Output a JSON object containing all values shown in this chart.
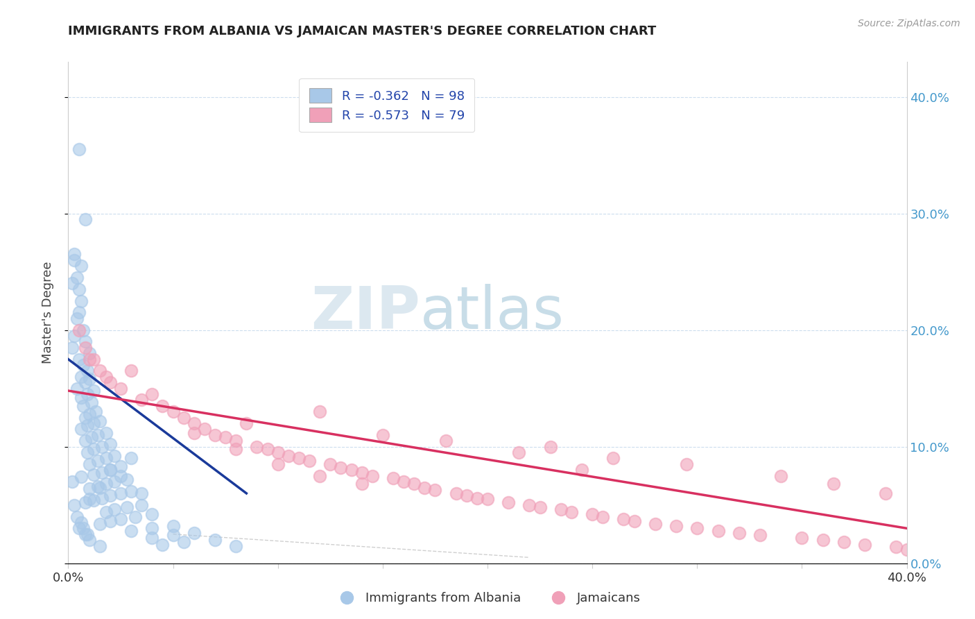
{
  "title": "IMMIGRANTS FROM ALBANIA VS JAMAICAN MASTER'S DEGREE CORRELATION CHART",
  "source": "Source: ZipAtlas.com",
  "ylabel": "Master's Degree",
  "xlim": [
    0.0,
    0.4
  ],
  "ylim": [
    0.0,
    0.43
  ],
  "legend_r1": "R = -0.362   N = 98",
  "legend_r2": "R = -0.573   N = 79",
  "color_albania": "#a8c8e8",
  "color_jamaica": "#f0a0b8",
  "line_color_albania": "#1a3a9a",
  "line_color_jamaica": "#d83060",
  "watermark_zip": "ZIP",
  "watermark_atlas": "atlas",
  "albania_scatter": [
    [
      0.005,
      0.355
    ],
    [
      0.008,
      0.295
    ],
    [
      0.003,
      0.265
    ],
    [
      0.006,
      0.255
    ],
    [
      0.004,
      0.245
    ],
    [
      0.005,
      0.235
    ],
    [
      0.003,
      0.26
    ],
    [
      0.002,
      0.24
    ],
    [
      0.006,
      0.225
    ],
    [
      0.005,
      0.215
    ],
    [
      0.004,
      0.21
    ],
    [
      0.007,
      0.2
    ],
    [
      0.003,
      0.195
    ],
    [
      0.008,
      0.19
    ],
    [
      0.002,
      0.185
    ],
    [
      0.01,
      0.18
    ],
    [
      0.005,
      0.175
    ],
    [
      0.007,
      0.17
    ],
    [
      0.009,
      0.165
    ],
    [
      0.006,
      0.16
    ],
    [
      0.01,
      0.158
    ],
    [
      0.008,
      0.155
    ],
    [
      0.004,
      0.15
    ],
    [
      0.012,
      0.148
    ],
    [
      0.009,
      0.145
    ],
    [
      0.006,
      0.142
    ],
    [
      0.011,
      0.138
    ],
    [
      0.007,
      0.135
    ],
    [
      0.013,
      0.13
    ],
    [
      0.01,
      0.128
    ],
    [
      0.008,
      0.125
    ],
    [
      0.015,
      0.122
    ],
    [
      0.012,
      0.12
    ],
    [
      0.009,
      0.118
    ],
    [
      0.006,
      0.115
    ],
    [
      0.018,
      0.112
    ],
    [
      0.014,
      0.11
    ],
    [
      0.011,
      0.108
    ],
    [
      0.008,
      0.105
    ],
    [
      0.02,
      0.102
    ],
    [
      0.016,
      0.1
    ],
    [
      0.012,
      0.098
    ],
    [
      0.009,
      0.095
    ],
    [
      0.022,
      0.092
    ],
    [
      0.018,
      0.09
    ],
    [
      0.014,
      0.088
    ],
    [
      0.01,
      0.085
    ],
    [
      0.025,
      0.083
    ],
    [
      0.02,
      0.08
    ],
    [
      0.016,
      0.078
    ],
    [
      0.012,
      0.076
    ],
    [
      0.006,
      0.074
    ],
    [
      0.028,
      0.072
    ],
    [
      0.022,
      0.07
    ],
    [
      0.018,
      0.068
    ],
    [
      0.014,
      0.066
    ],
    [
      0.01,
      0.064
    ],
    [
      0.03,
      0.062
    ],
    [
      0.025,
      0.06
    ],
    [
      0.02,
      0.058
    ],
    [
      0.016,
      0.056
    ],
    [
      0.012,
      0.054
    ],
    [
      0.008,
      0.052
    ],
    [
      0.035,
      0.05
    ],
    [
      0.028,
      0.048
    ],
    [
      0.022,
      0.046
    ],
    [
      0.018,
      0.044
    ],
    [
      0.04,
      0.042
    ],
    [
      0.032,
      0.04
    ],
    [
      0.025,
      0.038
    ],
    [
      0.02,
      0.036
    ],
    [
      0.015,
      0.034
    ],
    [
      0.05,
      0.032
    ],
    [
      0.04,
      0.03
    ],
    [
      0.03,
      0.028
    ],
    [
      0.06,
      0.026
    ],
    [
      0.05,
      0.024
    ],
    [
      0.04,
      0.022
    ],
    [
      0.07,
      0.02
    ],
    [
      0.055,
      0.018
    ],
    [
      0.045,
      0.016
    ],
    [
      0.08,
      0.015
    ],
    [
      0.01,
      0.055
    ],
    [
      0.015,
      0.065
    ],
    [
      0.02,
      0.08
    ],
    [
      0.025,
      0.075
    ],
    [
      0.03,
      0.09
    ],
    [
      0.035,
      0.06
    ],
    [
      0.005,
      0.03
    ],
    [
      0.008,
      0.025
    ],
    [
      0.01,
      0.02
    ],
    [
      0.015,
      0.015
    ],
    [
      0.002,
      0.07
    ],
    [
      0.003,
      0.05
    ],
    [
      0.004,
      0.04
    ],
    [
      0.006,
      0.035
    ],
    [
      0.007,
      0.03
    ],
    [
      0.009,
      0.025
    ]
  ],
  "jamaica_scatter": [
    [
      0.005,
      0.2
    ],
    [
      0.008,
      0.185
    ],
    [
      0.01,
      0.175
    ],
    [
      0.015,
      0.165
    ],
    [
      0.012,
      0.175
    ],
    [
      0.018,
      0.16
    ],
    [
      0.02,
      0.155
    ],
    [
      0.025,
      0.15
    ],
    [
      0.03,
      0.165
    ],
    [
      0.035,
      0.14
    ],
    [
      0.04,
      0.145
    ],
    [
      0.045,
      0.135
    ],
    [
      0.05,
      0.13
    ],
    [
      0.055,
      0.125
    ],
    [
      0.06,
      0.12
    ],
    [
      0.065,
      0.115
    ],
    [
      0.07,
      0.11
    ],
    [
      0.075,
      0.108
    ],
    [
      0.08,
      0.105
    ],
    [
      0.085,
      0.12
    ],
    [
      0.09,
      0.1
    ],
    [
      0.095,
      0.098
    ],
    [
      0.1,
      0.095
    ],
    [
      0.105,
      0.092
    ],
    [
      0.11,
      0.09
    ],
    [
      0.115,
      0.088
    ],
    [
      0.12,
      0.13
    ],
    [
      0.125,
      0.085
    ],
    [
      0.13,
      0.082
    ],
    [
      0.135,
      0.08
    ],
    [
      0.14,
      0.078
    ],
    [
      0.145,
      0.075
    ],
    [
      0.15,
      0.11
    ],
    [
      0.155,
      0.073
    ],
    [
      0.16,
      0.07
    ],
    [
      0.165,
      0.068
    ],
    [
      0.17,
      0.065
    ],
    [
      0.175,
      0.063
    ],
    [
      0.18,
      0.105
    ],
    [
      0.185,
      0.06
    ],
    [
      0.19,
      0.058
    ],
    [
      0.195,
      0.056
    ],
    [
      0.2,
      0.055
    ],
    [
      0.21,
      0.052
    ],
    [
      0.215,
      0.095
    ],
    [
      0.22,
      0.05
    ],
    [
      0.225,
      0.048
    ],
    [
      0.23,
      0.1
    ],
    [
      0.235,
      0.046
    ],
    [
      0.24,
      0.044
    ],
    [
      0.245,
      0.08
    ],
    [
      0.25,
      0.042
    ],
    [
      0.255,
      0.04
    ],
    [
      0.26,
      0.09
    ],
    [
      0.265,
      0.038
    ],
    [
      0.27,
      0.036
    ],
    [
      0.28,
      0.034
    ],
    [
      0.29,
      0.032
    ],
    [
      0.295,
      0.085
    ],
    [
      0.3,
      0.03
    ],
    [
      0.31,
      0.028
    ],
    [
      0.32,
      0.026
    ],
    [
      0.33,
      0.024
    ],
    [
      0.34,
      0.075
    ],
    [
      0.35,
      0.022
    ],
    [
      0.36,
      0.02
    ],
    [
      0.365,
      0.068
    ],
    [
      0.37,
      0.018
    ],
    [
      0.38,
      0.016
    ],
    [
      0.39,
      0.06
    ],
    [
      0.395,
      0.014
    ],
    [
      0.4,
      0.012
    ],
    [
      0.06,
      0.112
    ],
    [
      0.08,
      0.098
    ],
    [
      0.1,
      0.085
    ],
    [
      0.12,
      0.075
    ],
    [
      0.14,
      0.068
    ]
  ],
  "albania_line": {
    "x0": 0.0,
    "y0": 0.175,
    "x1": 0.085,
    "y1": 0.06
  },
  "jamaica_line": {
    "x0": 0.0,
    "y0": 0.148,
    "x1": 0.4,
    "y1": 0.03
  },
  "dashed_line": {
    "x0": 0.05,
    "y0": 0.025,
    "x1": 0.22,
    "y1": 0.005
  }
}
